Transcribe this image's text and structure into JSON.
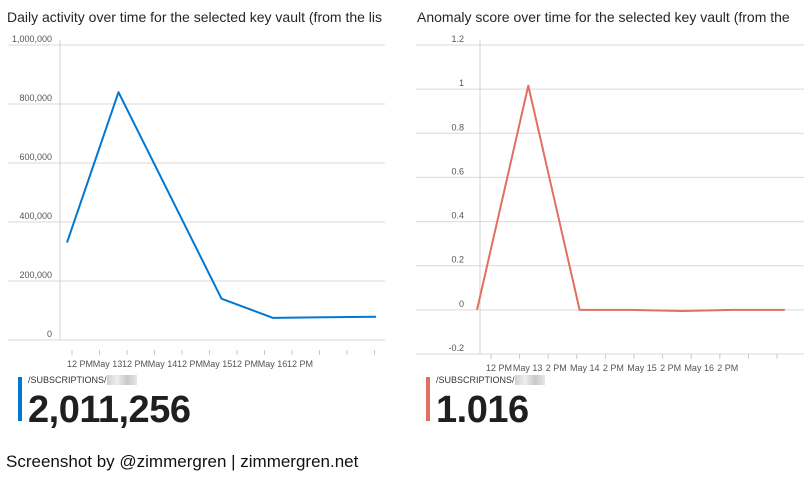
{
  "panels": [
    {
      "title": "Daily activity over time for the selected key vault (from the lis",
      "color": "#0078d4",
      "kpi": {
        "label": "/SUBSCRIPTIONS/",
        "value": "2,011,256"
      }
    },
    {
      "title": "Anomaly score over time for the selected key vault (from the",
      "color": "#e0705f",
      "kpi": {
        "label": "/SUBSCRIPTIONS/",
        "value": "1.016"
      }
    }
  ],
  "credit": "Screenshot by @zimmergren | zimmergren.net",
  "chart_data": [
    {
      "type": "line",
      "title": "Daily activity over time for the selected key vault (from the lis",
      "color": "#0078d4",
      "ylim": [
        0,
        1000000
      ],
      "yticks": [
        0,
        200000,
        400000,
        600000,
        800000,
        1000000
      ],
      "ytick_labels": [
        "0",
        "200,000",
        "400,000",
        "600,000",
        "800,000",
        "1,000,000"
      ],
      "xtick_labels": [
        "12 PM",
        "May 13",
        "12 PM",
        "May 14",
        "12 PM",
        "May 15",
        "12 PM",
        "May 16",
        "12 PM"
      ],
      "x": [
        0,
        1,
        2,
        3,
        4,
        5,
        6
      ],
      "values": [
        330000,
        840000,
        490000,
        140000,
        75000,
        77000,
        79000
      ],
      "grid": true
    },
    {
      "type": "line",
      "title": "Anomaly score over time for the selected key vault (from the",
      "color": "#e0705f",
      "ylim": [
        -0.2,
        1.2
      ],
      "yticks": [
        -0.2,
        0,
        0.2,
        0.4,
        0.6,
        0.8,
        1,
        1.2
      ],
      "ytick_labels": [
        "-0.2",
        "0",
        "0.2",
        "0.4",
        "0.6",
        "0.8",
        "1",
        "1.2"
      ],
      "xtick_labels": [
        "12 PM",
        "May 13",
        "2 PM",
        "May 14",
        "2 PM",
        "May 15",
        "2 PM",
        "May 16",
        "2 PM"
      ],
      "x": [
        0,
        1,
        2,
        3,
        4,
        5,
        6
      ],
      "values": [
        0,
        1.016,
        0,
        0,
        -0.005,
        0,
        0
      ],
      "grid": true
    }
  ]
}
